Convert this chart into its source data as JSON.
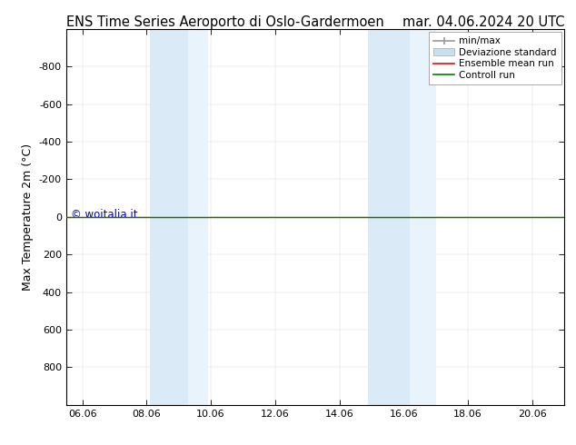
{
  "title_left": "ENS Time Series Aeroporto di Oslo-Gardermoen",
  "title_right": "mar. 04.06.2024 20 UTC",
  "ylabel": "Max Temperature 2m (°C)",
  "ylim_top": -1000,
  "ylim_bottom": 1000,
  "yticks": [
    -800,
    -600,
    -400,
    -200,
    0,
    200,
    400,
    600,
    800
  ],
  "xlim_min": 5.5,
  "xlim_max": 21.0,
  "xtick_labels": [
    "06.06",
    "08.06",
    "10.06",
    "12.06",
    "14.06",
    "16.06",
    "18.06",
    "20.06"
  ],
  "xtick_positions": [
    6,
    8,
    10,
    12,
    14,
    16,
    18,
    20
  ],
  "shaded_regions": [
    {
      "xmin": 8.1,
      "xmax": 9.3,
      "color": "#daeaf7",
      "alpha": 1.0
    },
    {
      "xmin": 9.3,
      "xmax": 9.9,
      "color": "#e8f3fb",
      "alpha": 1.0
    },
    {
      "xmin": 14.9,
      "xmax": 16.2,
      "color": "#daeaf7",
      "alpha": 1.0
    },
    {
      "xmin": 16.2,
      "xmax": 17.0,
      "color": "#e8f3fb",
      "alpha": 1.0
    }
  ],
  "green_line_y": 0,
  "red_line_y": 0,
  "watermark": "© woitalia.it",
  "watermark_color": "#0000cc",
  "background_color": "#ffffff",
  "legend_labels": [
    "min/max",
    "Deviazione standard",
    "Ensemble mean run",
    "Controll run"
  ],
  "minmax_color": "#999999",
  "dev_color": "#c8dff0",
  "ens_color": "#ff0000",
  "ctrl_color": "#008000",
  "title_fontsize": 10.5,
  "ylabel_fontsize": 9,
  "tick_fontsize": 8
}
